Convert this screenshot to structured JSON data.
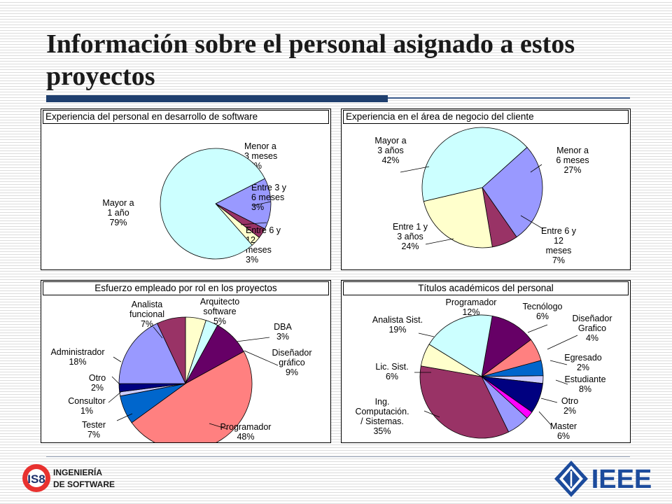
{
  "slide": {
    "title": "Información sobre el personal asignado a estos proyectos"
  },
  "colors": {
    "title_bar": "#1f3f6e",
    "ieee_blue": "#1c4b9c"
  },
  "logos": {
    "left": {
      "badge": "IS8",
      "line1": "INGENIERÍA",
      "line2": "DE SOFTWARE"
    },
    "right": {
      "text": "IEEE"
    }
  },
  "chart_data": [
    {
      "type": "pie",
      "title": "Experiencia del personal en desarrollo de software",
      "slices": [
        {
          "name": "Menor a 3 meses",
          "value": 15,
          "color": "#9999ff",
          "label_lines": [
            "Menor a",
            "3 meses",
            "15%"
          ]
        },
        {
          "name": "Entre 3 y 6 meses",
          "value": 3,
          "color": "#993366",
          "label_lines": [
            "Entre 3 y",
            "6 meses",
            "3%"
          ]
        },
        {
          "name": "Entre 6 y 12 meses",
          "value": 3,
          "color": "#ffffcc",
          "label_lines": [
            "Entre 6 y",
            "12",
            "meses",
            "3%"
          ]
        },
        {
          "name": "Mayor a 1 año",
          "value": 79,
          "color": "#ccffff",
          "label_lines": [
            "Mayor a",
            "1 año",
            "79%"
          ]
        }
      ]
    },
    {
      "type": "pie",
      "title": "Experiencia en el área de negocio del cliente",
      "slices": [
        {
          "name": "Menor a 6 meses",
          "value": 27,
          "color": "#9999ff",
          "label_lines": [
            "Menor a",
            "6 meses",
            "27%"
          ]
        },
        {
          "name": "Entre 6 y 12 meses",
          "value": 7,
          "color": "#993366",
          "label_lines": [
            "Entre 6 y",
            "12",
            "meses",
            "7%"
          ]
        },
        {
          "name": "Entre 1 y 3 años",
          "value": 24,
          "color": "#ffffcc",
          "label_lines": [
            "Entre 1 y",
            "3 años",
            "24%"
          ]
        },
        {
          "name": "Mayor a 3 años",
          "value": 42,
          "color": "#ccffff",
          "label_lines": [
            "Mayor a",
            "3 años",
            "42%"
          ]
        }
      ]
    },
    {
      "type": "pie",
      "title": "Esfuerzo empleado por rol en los proyectos",
      "slices": [
        {
          "name": "Arquitecto software",
          "value": 5,
          "color": "#ffffcc",
          "label_lines": [
            "Arquitecto",
            "software",
            "5%"
          ]
        },
        {
          "name": "DBA",
          "value": 3,
          "color": "#ccffff",
          "label_lines": [
            "DBA",
            "3%"
          ]
        },
        {
          "name": "Diseñador gráfico",
          "value": 9,
          "color": "#660066",
          "label_lines": [
            "Diseñador",
            "gráfico",
            "9%"
          ]
        },
        {
          "name": "Programador",
          "value": 48,
          "color": "#ff8080",
          "label_lines": [
            "Programador",
            "48%"
          ]
        },
        {
          "name": "Tester",
          "value": 7,
          "color": "#0066cc",
          "label_lines": [
            "Tester",
            "7%"
          ]
        },
        {
          "name": "Consultor",
          "value": 1,
          "color": "#ccccff",
          "label_lines": [
            "Consultor",
            "1%"
          ]
        },
        {
          "name": "Otro",
          "value": 2,
          "color": "#000080",
          "label_lines": [
            "Otro",
            "2%"
          ]
        },
        {
          "name": "Administrador",
          "value": 18,
          "color": "#9999ff",
          "label_lines": [
            "Administrador",
            "18%"
          ]
        },
        {
          "name": "Analista funcional",
          "value": 7,
          "color": "#993366",
          "label_lines": [
            "Analista",
            "funcional",
            "7%"
          ]
        }
      ]
    },
    {
      "type": "pie",
      "title": "Títulos académicos del personal",
      "slices": [
        {
          "name": "Programador",
          "value": 12,
          "color": "#660066",
          "label_lines": [
            "Programador",
            "12%"
          ]
        },
        {
          "name": "Tecnólogo",
          "value": 6,
          "color": "#ff8080",
          "label_lines": [
            "Tecnólogo",
            "6%"
          ]
        },
        {
          "name": "Diseñador Grafico",
          "value": 4,
          "color": "#0066cc",
          "label_lines": [
            "Diseñador",
            "Grafico",
            "4%"
          ]
        },
        {
          "name": "Egresado",
          "value": 2,
          "color": "#ccccff",
          "label_lines": [
            "Egresado",
            "2%"
          ]
        },
        {
          "name": "Estudiante",
          "value": 8,
          "color": "#000080",
          "label_lines": [
            "Estudiante",
            "8%"
          ]
        },
        {
          "name": "Otro",
          "value": 2,
          "color": "#ff00ff",
          "label_lines": [
            "Otro",
            "2%"
          ]
        },
        {
          "name": "Master",
          "value": 6,
          "color": "#9999ff",
          "label_lines": [
            "Master",
            "6%"
          ]
        },
        {
          "name": "Ing. Computación. / Sistemas.",
          "value": 35,
          "color": "#993366",
          "label_lines": [
            "Ing.",
            "Computación.",
            "/ Sistemas.",
            "35%"
          ]
        },
        {
          "name": "Lic. Sist.",
          "value": 6,
          "color": "#ffffcc",
          "label_lines": [
            "Lic. Sist.",
            "6%"
          ]
        },
        {
          "name": "Analista Sist.",
          "value": 19,
          "color": "#ccffff",
          "label_lines": [
            "Analista Sist.",
            "19%"
          ]
        }
      ]
    }
  ]
}
